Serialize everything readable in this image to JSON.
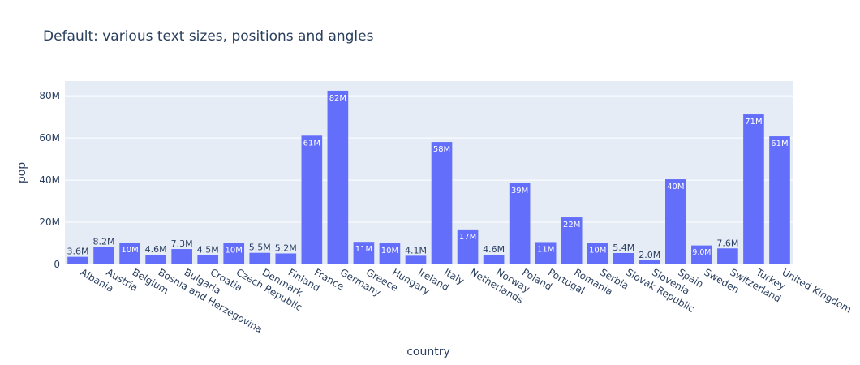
{
  "chart_data": {
    "type": "bar",
    "title": "Default: various text sizes, positions and angles",
    "xlabel": "country",
    "ylabel": "pop",
    "ylim": [
      0,
      87000000
    ],
    "yticks": [
      0,
      20000000,
      40000000,
      60000000,
      80000000
    ],
    "ytick_labels": [
      "0",
      "20M",
      "40M",
      "60M",
      "80M"
    ],
    "colors": {
      "bar": "#636efa",
      "plot_bg": "#e5ecf6",
      "text": "#2a3f5f"
    },
    "categories": [
      "Albania",
      "Austria",
      "Belgium",
      "Bosnia and Herzegovina",
      "Bulgaria",
      "Croatia",
      "Czech Republic",
      "Denmark",
      "Finland",
      "France",
      "Germany",
      "Greece",
      "Hungary",
      "Ireland",
      "Italy",
      "Netherlands",
      "Norway",
      "Poland",
      "Portugal",
      "Romania",
      "Serbia",
      "Slovak Republic",
      "Slovenia",
      "Spain",
      "Sweden",
      "Switzerland",
      "Turkey",
      "United Kingdom"
    ],
    "values": [
      3600000,
      8200000,
      10400000,
      4600000,
      7300000,
      4500000,
      10200000,
      5500000,
      5200000,
      61100000,
      82400000,
      10700000,
      10000000,
      4100000,
      58100000,
      16600000,
      4600000,
      38500000,
      10600000,
      22300000,
      10200000,
      5400000,
      2000000,
      40400000,
      9000000,
      7600000,
      71200000,
      60800000
    ],
    "labels": [
      "3.6M",
      "8.2M",
      "10M",
      "4.6M",
      "7.3M",
      "4.5M",
      "10M",
      "5.5M",
      "5.2M",
      "61M",
      "82M",
      "11M",
      "10M",
      "4.1M",
      "58M",
      "17M",
      "4.6M",
      "39M",
      "11M",
      "22M",
      "10M",
      "5.4M",
      "2.0M",
      "40M",
      "9.0M",
      "7.6M",
      "71M",
      "61M"
    ]
  }
}
